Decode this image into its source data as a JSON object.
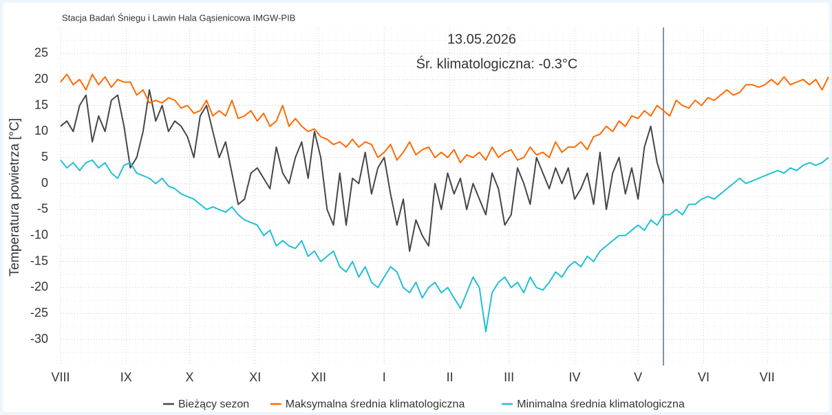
{
  "chart_data": {
    "type": "line",
    "title": "Stacja Badań Śniegu i Lawin Hala Gąsienicowa IMGW-PIB",
    "ylabel": "Temperatura powietrza [°C]",
    "annotation": {
      "x": 285,
      "date": "13.05.2026",
      "text": "Śr. klimatologiczna: -0.3°C"
    },
    "xlim": [
      0,
      365
    ],
    "xticks": [
      {
        "value": 0,
        "label": "VIII"
      },
      {
        "value": 31,
        "label": "IX"
      },
      {
        "value": 61,
        "label": "X"
      },
      {
        "value": 92,
        "label": "XI"
      },
      {
        "value": 122,
        "label": "XII"
      },
      {
        "value": 153,
        "label": "I"
      },
      {
        "value": 184,
        "label": "II"
      },
      {
        "value": 212,
        "label": "III"
      },
      {
        "value": 243,
        "label": "IV"
      },
      {
        "value": 273,
        "label": "V"
      },
      {
        "value": 304,
        "label": "VI"
      },
      {
        "value": 334,
        "label": "VII"
      }
    ],
    "ylim": [
      -35,
      30
    ],
    "yticks": [
      -30,
      -25,
      -20,
      -15,
      -10,
      -5,
      0,
      5,
      10,
      15,
      20,
      25
    ],
    "grid": true,
    "x": [
      0,
      3,
      6,
      9,
      12,
      15,
      18,
      21,
      24,
      27,
      30,
      33,
      36,
      39,
      42,
      45,
      48,
      51,
      54,
      57,
      60,
      63,
      66,
      69,
      72,
      75,
      78,
      81,
      84,
      87,
      90,
      93,
      96,
      99,
      102,
      105,
      108,
      111,
      114,
      117,
      120,
      123,
      126,
      129,
      132,
      135,
      138,
      141,
      144,
      147,
      150,
      153,
      156,
      159,
      162,
      165,
      168,
      171,
      174,
      177,
      180,
      183,
      186,
      189,
      192,
      195,
      198,
      201,
      204,
      207,
      210,
      213,
      216,
      219,
      222,
      225,
      228,
      231,
      234,
      237,
      240,
      243,
      246,
      249,
      252,
      255,
      258,
      261,
      264,
      267,
      270,
      273,
      276,
      279,
      282,
      285,
      288,
      291,
      294,
      297,
      300,
      303,
      306,
      309,
      312,
      315,
      318,
      321,
      324,
      327,
      330,
      333,
      336,
      339,
      342,
      345,
      348,
      351,
      354,
      357,
      360,
      363
    ],
    "series": [
      {
        "name": "Bieżący sezon",
        "color": "#454545",
        "values": [
          11,
          12,
          10,
          15,
          17,
          8,
          13,
          10,
          16,
          17,
          11,
          3,
          5,
          10,
          18,
          12,
          15,
          10,
          12,
          11,
          9,
          5,
          13,
          15,
          10,
          5,
          8,
          2,
          -4,
          -3,
          2,
          3,
          1,
          -1,
          7,
          2,
          0,
          5,
          8,
          1,
          10,
          5,
          -5,
          -8,
          2,
          -8,
          1,
          0,
          6,
          -2,
          3,
          5,
          -2,
          -8,
          -3,
          -13,
          -7,
          -10,
          -12,
          0,
          -5,
          2,
          -2,
          1,
          -5,
          0,
          -3,
          -6,
          2,
          -1,
          -8,
          -6,
          3,
          0,
          -4,
          5,
          2,
          -1,
          3,
          0,
          3,
          -3,
          -1,
          2,
          -4,
          6,
          -5,
          2,
          5,
          -2,
          3,
          -3,
          7,
          11,
          4,
          0,
          null,
          null,
          null,
          null,
          null,
          null,
          null,
          null,
          null,
          null,
          null,
          null,
          null,
          null,
          null,
          null,
          null,
          null,
          null,
          null,
          null,
          null,
          null,
          null,
          null,
          null
        ]
      },
      {
        "name": "Maksymalna średnia klimatologiczna",
        "color": "#ff6a00",
        "values": [
          19.5,
          21,
          19,
          20,
          18,
          21,
          19,
          20.5,
          18.5,
          20,
          19.5,
          19.5,
          17,
          18,
          15.5,
          16,
          15.5,
          16.5,
          16,
          14.5,
          15,
          13.5,
          14,
          16,
          13,
          14,
          13,
          16,
          12.5,
          13,
          14,
          12,
          13.5,
          11,
          12,
          15,
          11,
          12.5,
          11,
          10,
          10.5,
          9,
          8.5,
          7.5,
          8,
          7,
          8.5,
          7,
          8,
          7.5,
          5,
          6,
          7.5,
          4.5,
          6,
          8,
          5.5,
          6.5,
          7,
          5,
          6,
          5,
          6.5,
          4,
          5.5,
          5,
          6,
          4.5,
          7,
          5,
          6,
          6.5,
          4.5,
          5,
          7,
          5.5,
          6,
          5,
          8,
          6,
          7,
          7,
          8,
          6.5,
          9,
          9.5,
          11,
          10,
          12,
          11,
          13,
          12.5,
          14,
          13,
          15,
          14,
          13,
          16,
          15,
          14.5,
          16,
          15,
          16.5,
          16,
          17,
          18,
          17,
          17.5,
          19,
          19,
          18.5,
          19,
          20,
          19,
          20.5,
          19,
          19.5,
          20,
          19,
          20,
          18,
          20.5
        ]
      },
      {
        "name": "Minimalna średnia klimatologiczna",
        "color": "#1ec0d6",
        "values": [
          4.5,
          3,
          4,
          2.5,
          4,
          4.5,
          3,
          4,
          2,
          1,
          3.5,
          4,
          2,
          1.5,
          1,
          0,
          1,
          -0.5,
          -1,
          -2,
          -2.5,
          -3,
          -4,
          -5,
          -4.5,
          -5,
          -5.5,
          -4.5,
          -6,
          -7,
          -7.5,
          -8,
          -10,
          -9,
          -12,
          -11,
          -12,
          -12.5,
          -11,
          -14,
          -13,
          -15,
          -14,
          -13,
          -16,
          -17,
          -15,
          -18,
          -16,
          -19,
          -20,
          -18,
          -16,
          -17,
          -20,
          -21,
          -19,
          -22,
          -20,
          -19,
          -21,
          -20,
          -22,
          -24,
          -21,
          -18,
          -20,
          -28.5,
          -21,
          -19,
          -18,
          -20,
          -19,
          -21,
          -18,
          -20,
          -20.5,
          -19,
          -17,
          -18,
          -16,
          -15,
          -16,
          -14,
          -15,
          -13,
          -12,
          -11,
          -10,
          -10,
          -9,
          -8,
          -9,
          -7,
          -8,
          -6,
          -6,
          -5,
          -6,
          -4,
          -4,
          -3,
          -2.5,
          -3,
          -2,
          -1,
          0,
          1,
          0,
          0.5,
          1,
          1.5,
          2,
          2.5,
          2,
          3,
          2.5,
          3.5,
          4,
          3.5,
          4,
          5
        ]
      }
    ]
  }
}
